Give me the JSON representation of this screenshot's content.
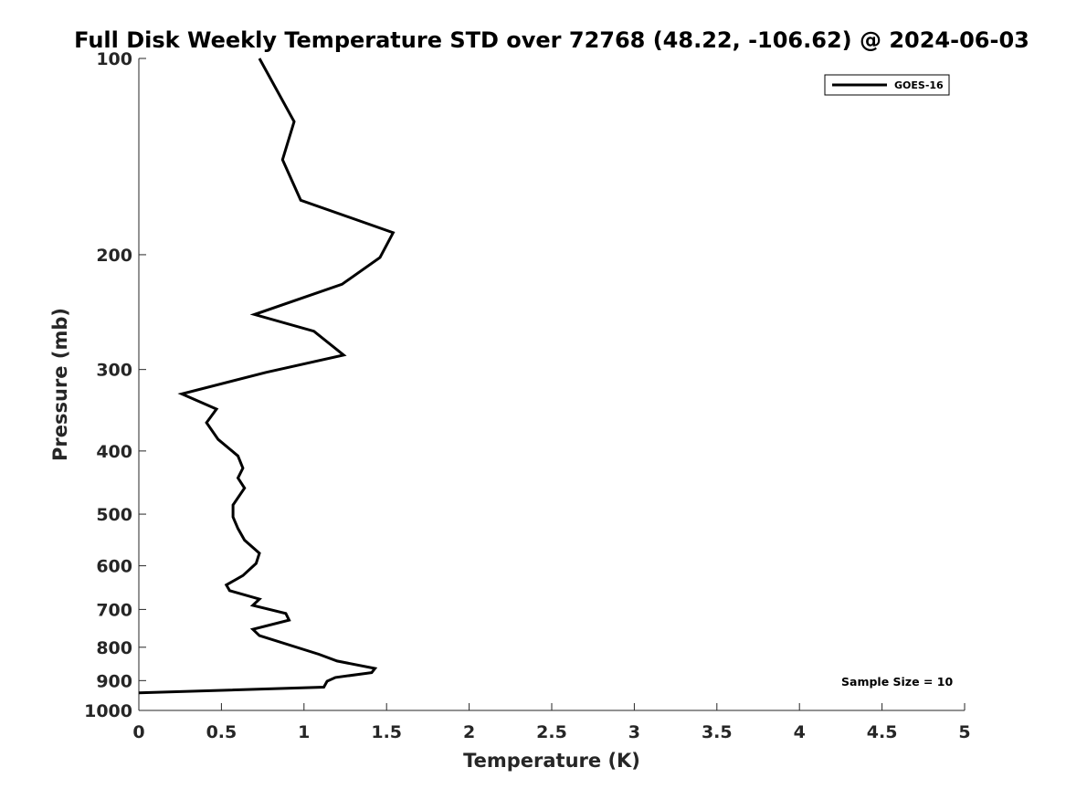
{
  "chart_data": {
    "type": "line",
    "title": "Full Disk Weekly Temperature STD over 72768 (48.22, -106.62) @ 2024-06-03",
    "xlabel": "Temperature (K)",
    "ylabel": "Pressure (mb)",
    "xlim": [
      0,
      5
    ],
    "ylim": [
      100,
      1000
    ],
    "y_scale": "log",
    "y_reversed": true,
    "x_ticks": [
      0,
      0.5,
      1,
      1.5,
      2,
      2.5,
      3,
      3.5,
      4,
      4.5,
      5
    ],
    "x_tick_labels": [
      "0",
      "0.5",
      "1",
      "1.5",
      "2",
      "2.5",
      "3",
      "3.5",
      "4",
      "4.5",
      "5"
    ],
    "y_ticks": [
      100,
      200,
      300,
      400,
      500,
      600,
      700,
      800,
      900,
      1000
    ],
    "y_tick_labels": [
      "100",
      "200",
      "300",
      "400",
      "500",
      "600",
      "700",
      "800",
      "900",
      "1000"
    ],
    "grid": false,
    "legend_position": "top-right",
    "series": [
      {
        "name": "GOES-16",
        "color": "#000000",
        "points": [
          [
            0.73,
            100
          ],
          [
            0.94,
            125
          ],
          [
            0.87,
            143
          ],
          [
            0.98,
            165
          ],
          [
            1.54,
            185
          ],
          [
            1.46,
            202
          ],
          [
            1.23,
            222
          ],
          [
            0.7,
            247
          ],
          [
            1.06,
            262
          ],
          [
            1.24,
            285
          ],
          [
            0.77,
            303
          ],
          [
            0.26,
            327
          ],
          [
            0.47,
            345
          ],
          [
            0.41,
            362
          ],
          [
            0.48,
            384
          ],
          [
            0.6,
            407
          ],
          [
            0.63,
            425
          ],
          [
            0.6,
            440
          ],
          [
            0.64,
            456
          ],
          [
            0.57,
            484
          ],
          [
            0.57,
            505
          ],
          [
            0.6,
            526
          ],
          [
            0.64,
            548
          ],
          [
            0.73,
            574
          ],
          [
            0.71,
            595
          ],
          [
            0.63,
            621
          ],
          [
            0.53,
            642
          ],
          [
            0.55,
            655
          ],
          [
            0.73,
            675
          ],
          [
            0.69,
            690
          ],
          [
            0.89,
            710
          ],
          [
            0.91,
            727
          ],
          [
            0.69,
            751
          ],
          [
            0.73,
            768
          ],
          [
            1.09,
            820
          ],
          [
            1.2,
            840
          ],
          [
            1.43,
            862
          ],
          [
            1.41,
            875
          ],
          [
            1.19,
            890
          ],
          [
            1.14,
            902
          ],
          [
            1.12,
            921
          ],
          [
            0.0,
            940
          ]
        ]
      }
    ],
    "annotation": "Sample Size = 10"
  }
}
